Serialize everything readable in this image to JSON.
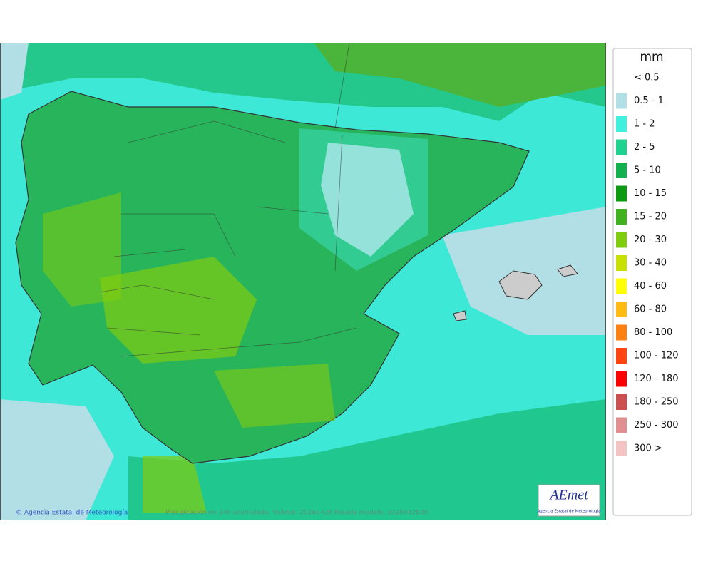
{
  "legend": {
    "title": "mm",
    "items": [
      {
        "label": "< 0.5",
        "color": "#ffffff"
      },
      {
        "label": "0.5 - 1",
        "color": "#b2dfe5"
      },
      {
        "label": "1 - 2",
        "color": "#3ff0df"
      },
      {
        "label": "2 - 5",
        "color": "#1fd28f"
      },
      {
        "label": "5 - 10",
        "color": "#12b150"
      },
      {
        "label": "10 - 15",
        "color": "#0b9a12"
      },
      {
        "label": "15 - 20",
        "color": "#42b11f"
      },
      {
        "label": "20 - 30",
        "color": "#80cc0f"
      },
      {
        "label": "30 - 40",
        "color": "#c8e000"
      },
      {
        "label": "40 - 60",
        "color": "#ffff00"
      },
      {
        "label": "60 - 80",
        "color": "#ffbb12"
      },
      {
        "label": "80 - 100",
        "color": "#ff8012"
      },
      {
        "label": "100 - 120",
        "color": "#ff4412"
      },
      {
        "label": "120 - 180",
        "color": "#ff0000"
      },
      {
        "label": "180 - 250",
        "color": "#cc5050"
      },
      {
        "label": "250 - 300",
        "color": "#e09090"
      },
      {
        "label": "300 >",
        "color": "#f2c4c4"
      }
    ]
  },
  "footer": {
    "credit": "© Agencia Estatal de Meteorología",
    "caption": "Precipitación en 24h acumulada. Validez: 20260428 Pasada modelo: 2026042800"
  },
  "logo": {
    "name": "AEmet",
    "subtitle": "Agencia Estatal de Meteorología"
  }
}
